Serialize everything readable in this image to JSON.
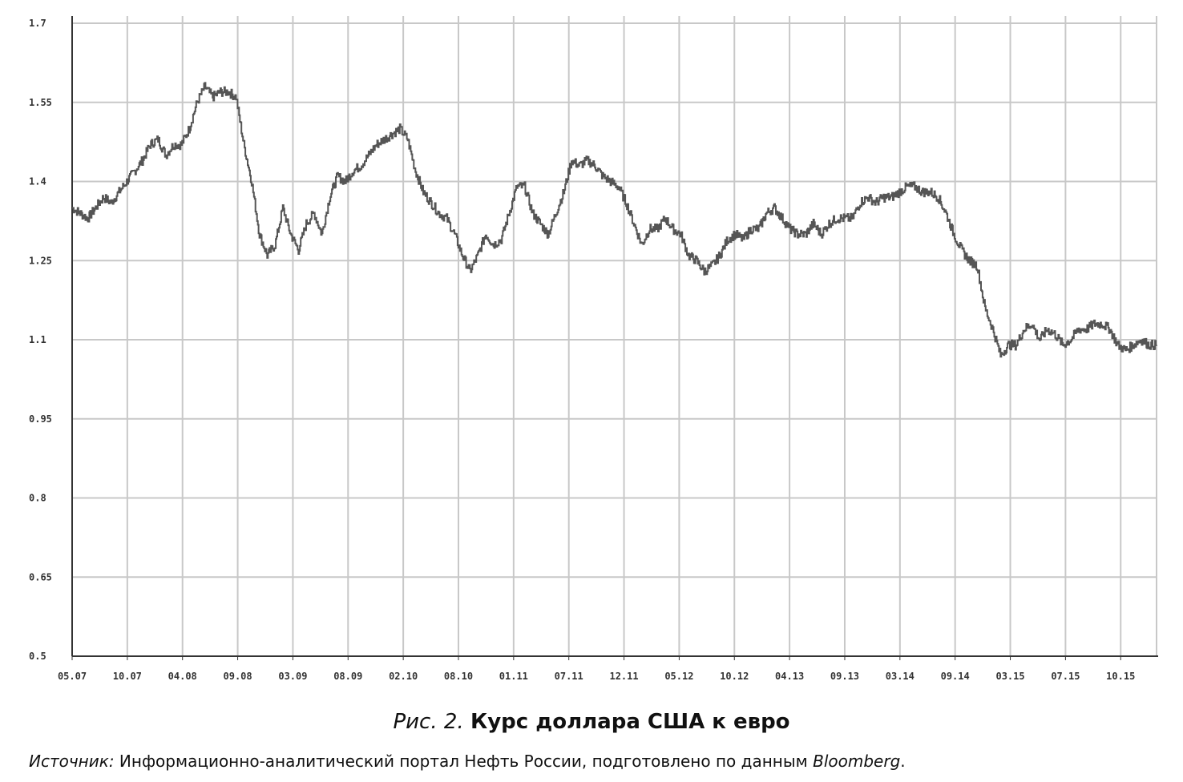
{
  "figure": {
    "label": "Рис. 2.",
    "title": "Курс доллара США к евро"
  },
  "source": {
    "label": "Источник:",
    "text": " Информационно-аналитический портал Нефть России, подготовлено по данным ",
    "brand": "Bloomberg",
    "end": "."
  },
  "chart_data": {
    "type": "line",
    "title": "",
    "xlabel": "",
    "ylabel": "",
    "ylim": [
      0.5,
      1.7
    ],
    "yticks": [
      "0.5",
      "0.65",
      "0.8",
      "0.95",
      "1.1",
      "1.25",
      "1.4",
      "1.55",
      "1.7"
    ],
    "xticks": [
      "05.07",
      "10.07",
      "04.08",
      "09.08",
      "03.09",
      "08.09",
      "02.10",
      "08.10",
      "01.11",
      "07.11",
      "12.11",
      "05.12",
      "10.12",
      "04.13",
      "09.13",
      "03.14",
      "09.14",
      "03.15",
      "07.15",
      "10.15"
    ],
    "grid": true,
    "line_color": "#555555",
    "series": [
      {
        "values": [
          [
            0,
            1.35
          ],
          [
            0.5,
            1.34
          ],
          [
            1,
            1.33
          ],
          [
            1.5,
            1.35
          ],
          [
            2,
            1.37
          ],
          [
            2.5,
            1.36
          ],
          [
            3,
            1.38
          ],
          [
            3.5,
            1.4
          ],
          [
            4,
            1.42
          ],
          [
            4.5,
            1.44
          ],
          [
            5,
            1.47
          ],
          [
            5.5,
            1.48
          ],
          [
            6,
            1.45
          ],
          [
            6.5,
            1.47
          ],
          [
            7,
            1.47
          ],
          [
            7.5,
            1.5
          ],
          [
            8,
            1.55
          ],
          [
            8.5,
            1.58
          ],
          [
            9,
            1.56
          ],
          [
            9.5,
            1.57
          ],
          [
            10,
            1.57
          ],
          [
            10.5,
            1.56
          ],
          [
            11,
            1.47
          ],
          [
            11.5,
            1.4
          ],
          [
            12,
            1.3
          ],
          [
            12.5,
            1.26
          ],
          [
            13,
            1.28
          ],
          [
            13.5,
            1.35
          ],
          [
            14,
            1.3
          ],
          [
            14.5,
            1.27
          ],
          [
            15,
            1.32
          ],
          [
            15.5,
            1.34
          ],
          [
            16,
            1.3
          ],
          [
            16.5,
            1.37
          ],
          [
            17,
            1.41
          ],
          [
            17.5,
            1.4
          ],
          [
            18,
            1.42
          ],
          [
            18.5,
            1.43
          ],
          [
            19,
            1.45
          ],
          [
            19.5,
            1.47
          ],
          [
            20,
            1.48
          ],
          [
            20.5,
            1.49
          ],
          [
            21,
            1.5
          ],
          [
            21.5,
            1.48
          ],
          [
            22,
            1.42
          ],
          [
            22.5,
            1.38
          ],
          [
            23,
            1.36
          ],
          [
            23.5,
            1.34
          ],
          [
            24,
            1.33
          ],
          [
            24.5,
            1.3
          ],
          [
            25,
            1.26
          ],
          [
            25.5,
            1.23
          ],
          [
            26,
            1.26
          ],
          [
            26.5,
            1.3
          ],
          [
            27,
            1.28
          ],
          [
            27.5,
            1.29
          ],
          [
            28,
            1.34
          ],
          [
            28.5,
            1.39
          ],
          [
            29,
            1.39
          ],
          [
            29.5,
            1.34
          ],
          [
            30,
            1.32
          ],
          [
            30.5,
            1.3
          ],
          [
            31,
            1.34
          ],
          [
            31.5,
            1.38
          ],
          [
            32,
            1.44
          ],
          [
            32.5,
            1.43
          ],
          [
            33,
            1.44
          ],
          [
            33.5,
            1.43
          ],
          [
            34,
            1.41
          ],
          [
            34.5,
            1.4
          ],
          [
            35,
            1.39
          ],
          [
            35.5,
            1.36
          ],
          [
            36,
            1.32
          ],
          [
            36.5,
            1.28
          ],
          [
            37,
            1.31
          ],
          [
            37.5,
            1.31
          ],
          [
            38,
            1.33
          ],
          [
            38.5,
            1.31
          ],
          [
            39,
            1.3
          ],
          [
            39.5,
            1.26
          ],
          [
            40,
            1.25
          ],
          [
            40.5,
            1.23
          ],
          [
            41,
            1.24
          ],
          [
            41.5,
            1.26
          ],
          [
            42,
            1.29
          ],
          [
            42.5,
            1.3
          ],
          [
            43,
            1.29
          ],
          [
            43.5,
            1.31
          ],
          [
            44,
            1.31
          ],
          [
            44.5,
            1.34
          ],
          [
            45,
            1.35
          ],
          [
            45.5,
            1.33
          ],
          [
            46,
            1.31
          ],
          [
            46.5,
            1.3
          ],
          [
            47,
            1.3
          ],
          [
            47.5,
            1.32
          ],
          [
            48,
            1.3
          ],
          [
            48.5,
            1.32
          ],
          [
            49,
            1.33
          ],
          [
            49.5,
            1.33
          ],
          [
            50,
            1.33
          ],
          [
            50.5,
            1.36
          ],
          [
            51,
            1.37
          ],
          [
            51.5,
            1.36
          ],
          [
            52,
            1.37
          ],
          [
            52.5,
            1.37
          ],
          [
            53,
            1.38
          ],
          [
            53.5,
            1.39
          ],
          [
            54,
            1.39
          ],
          [
            54.5,
            1.38
          ],
          [
            55,
            1.38
          ],
          [
            55.5,
            1.37
          ],
          [
            56,
            1.34
          ],
          [
            56.5,
            1.3
          ],
          [
            57,
            1.27
          ],
          [
            57.5,
            1.25
          ],
          [
            58,
            1.24
          ],
          [
            58.5,
            1.16
          ],
          [
            59,
            1.12
          ],
          [
            59.5,
            1.07
          ],
          [
            60,
            1.09
          ],
          [
            60.5,
            1.09
          ],
          [
            61,
            1.12
          ],
          [
            61.5,
            1.13
          ],
          [
            62,
            1.1
          ],
          [
            62.5,
            1.12
          ],
          [
            63,
            1.11
          ],
          [
            63.5,
            1.09
          ],
          [
            64,
            1.1
          ],
          [
            64.5,
            1.12
          ],
          [
            65,
            1.12
          ],
          [
            65.5,
            1.13
          ],
          [
            66,
            1.13
          ],
          [
            66.5,
            1.12
          ],
          [
            67,
            1.09
          ],
          [
            67.5,
            1.08
          ],
          [
            68,
            1.09
          ],
          [
            68.5,
            1.1
          ],
          [
            69,
            1.09
          ],
          [
            69.5,
            1.09
          ]
        ]
      }
    ]
  }
}
